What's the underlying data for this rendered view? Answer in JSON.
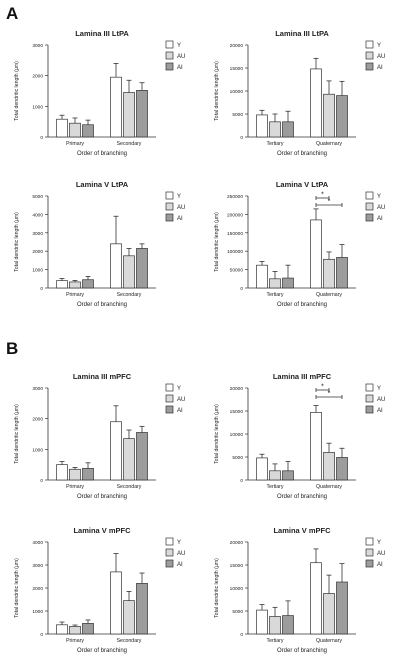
{
  "panels": [
    {
      "letter": "A"
    },
    {
      "letter": "B"
    }
  ],
  "legend_labels": [
    "Y",
    "AU",
    "AI"
  ],
  "colors": {
    "Y": "#ffffff",
    "AU": "#d9d9d9",
    "AI": "#9c9c9c",
    "stroke": "#333333",
    "text": "#222222"
  },
  "chart_data": [
    {
      "panel": "A",
      "title": "Lamina III LtPA",
      "type": "bar",
      "xlabel": "Order of branching",
      "ylabel": "Total dendritic length (μm)",
      "ylim": [
        0,
        3000
      ],
      "yticks": [
        0,
        1000,
        2000,
        3000
      ],
      "categories": [
        "Primary",
        "Secondary"
      ],
      "series": [
        {
          "name": "Y",
          "values": [
            580,
            1950
          ],
          "errors": [
            130,
            450
          ]
        },
        {
          "name": "AU",
          "values": [
            450,
            1450
          ],
          "errors": [
            170,
            400
          ]
        },
        {
          "name": "AI",
          "values": [
            400,
            1520
          ],
          "errors": [
            150,
            250
          ]
        }
      ],
      "significance": []
    },
    {
      "panel": "A",
      "title": "Lamina III LtPA",
      "type": "bar",
      "xlabel": "Order of branching",
      "ylabel": "Total dendritic length (μm)",
      "ylim": [
        0,
        20000
      ],
      "yticks": [
        0,
        5000,
        10000,
        15000,
        20000
      ],
      "categories": [
        "Tertiary",
        "Quaternary"
      ],
      "series": [
        {
          "name": "Y",
          "values": [
            4800,
            14800
          ],
          "errors": [
            1000,
            2300
          ]
        },
        {
          "name": "AU",
          "values": [
            3300,
            9300
          ],
          "errors": [
            1700,
            2900
          ]
        },
        {
          "name": "AI",
          "values": [
            3300,
            9000
          ],
          "errors": [
            2300,
            3100
          ]
        }
      ],
      "significance": []
    },
    {
      "panel": "A",
      "title": "Lamina V LtPA",
      "type": "bar",
      "xlabel": "Order of branching",
      "ylabel": "Total dendritic length (μm)",
      "ylim": [
        0,
        5000
      ],
      "yticks": [
        0,
        1000,
        2000,
        3000,
        4000,
        5000
      ],
      "categories": [
        "Primary",
        "Secondary"
      ],
      "series": [
        {
          "name": "Y",
          "values": [
            400,
            2400
          ],
          "errors": [
            120,
            1500
          ]
        },
        {
          "name": "AU",
          "values": [
            330,
            1750
          ],
          "errors": [
            80,
            400
          ]
        },
        {
          "name": "AI",
          "values": [
            450,
            2150
          ],
          "errors": [
            180,
            250
          ]
        }
      ],
      "significance": []
    },
    {
      "panel": "A",
      "title": "Lamina V LtPA",
      "type": "bar",
      "xlabel": "Order of branching",
      "ylabel": "Total dendritic length (μm)",
      "ylim": [
        0,
        250000
      ],
      "yticks": [
        0,
        50000,
        100000,
        150000,
        200000,
        250000
      ],
      "categories": [
        "Tertiary",
        "Quaternary"
      ],
      "series": [
        {
          "name": "Y",
          "values": [
            62000,
            185000
          ],
          "errors": [
            10000,
            30000
          ]
        },
        {
          "name": "AU",
          "values": [
            25000,
            78000
          ],
          "errors": [
            20000,
            20000
          ]
        },
        {
          "name": "AI",
          "values": [
            27000,
            83000
          ],
          "errors": [
            35000,
            35000
          ]
        }
      ],
      "significance": [
        {
          "from": [
            "Quaternary",
            "Y"
          ],
          "to": [
            "Quaternary",
            "AU"
          ],
          "label": "*"
        },
        {
          "from": [
            "Quaternary",
            "Y"
          ],
          "to": [
            "Quaternary",
            "AI"
          ],
          "label": "*"
        }
      ]
    },
    {
      "panel": "B",
      "title": "Lamina III mPFC",
      "type": "bar",
      "xlabel": "Order of branching",
      "ylabel": "Total dendritic length (μm)",
      "ylim": [
        0,
        3000
      ],
      "yticks": [
        0,
        1000,
        2000,
        3000
      ],
      "categories": [
        "Primary",
        "Secondary"
      ],
      "series": [
        {
          "name": "Y",
          "values": [
            500,
            1900
          ],
          "errors": [
            100,
            520
          ]
        },
        {
          "name": "AU",
          "values": [
            350,
            1350
          ],
          "errors": [
            60,
            280
          ]
        },
        {
          "name": "AI",
          "values": [
            380,
            1550
          ],
          "errors": [
            180,
            200
          ]
        }
      ],
      "significance": []
    },
    {
      "panel": "B",
      "title": "Lamina III mPFC",
      "type": "bar",
      "xlabel": "Order of branching",
      "ylabel": "Total dendritic length (μm)",
      "ylim": [
        0,
        20000
      ],
      "yticks": [
        0,
        5000,
        10000,
        15000,
        20000
      ],
      "categories": [
        "Tertiary",
        "Quaternary"
      ],
      "series": [
        {
          "name": "Y",
          "values": [
            4800,
            14700
          ],
          "errors": [
            800,
            1500
          ]
        },
        {
          "name": "AU",
          "values": [
            2000,
            6000
          ],
          "errors": [
            1500,
            2000
          ]
        },
        {
          "name": "AI",
          "values": [
            2000,
            4900
          ],
          "errors": [
            2000,
            2000
          ]
        }
      ],
      "significance": [
        {
          "from": [
            "Quaternary",
            "Y"
          ],
          "to": [
            "Quaternary",
            "AU"
          ],
          "label": "*"
        },
        {
          "from": [
            "Quaternary",
            "Y"
          ],
          "to": [
            "Quaternary",
            "AI"
          ],
          "label": "*"
        }
      ]
    },
    {
      "panel": "B",
      "title": "Lamina V mPFC",
      "type": "bar",
      "xlabel": "Order of branching",
      "ylabel": "Total dendritic length (μm)",
      "ylim": [
        0,
        4000
      ],
      "yticks": [
        0,
        1000,
        2000,
        3000,
        4000
      ],
      "categories": [
        "Primary",
        "Secondary"
      ],
      "series": [
        {
          "name": "Y",
          "values": [
            400,
            2700
          ],
          "errors": [
            120,
            800
          ]
        },
        {
          "name": "AU",
          "values": [
            330,
            1450
          ],
          "errors": [
            60,
            400
          ]
        },
        {
          "name": "AI",
          "values": [
            460,
            2200
          ],
          "errors": [
            150,
            450
          ]
        }
      ],
      "significance": []
    },
    {
      "panel": "B",
      "title": "Lamina V mPFC",
      "type": "bar",
      "xlabel": "Order of branching",
      "ylabel": "Total dendritic length (μm)",
      "ylim": [
        0,
        20000
      ],
      "yticks": [
        0,
        5000,
        10000,
        15000,
        20000
      ],
      "categories": [
        "Tertiary",
        "Quaternary"
      ],
      "series": [
        {
          "name": "Y",
          "values": [
            5200,
            15500
          ],
          "errors": [
            1200,
            3000
          ]
        },
        {
          "name": "AU",
          "values": [
            3800,
            8800
          ],
          "errors": [
            2000,
            4000
          ]
        },
        {
          "name": "AI",
          "values": [
            4000,
            11300
          ],
          "errors": [
            3200,
            4000
          ]
        }
      ],
      "significance": []
    }
  ]
}
